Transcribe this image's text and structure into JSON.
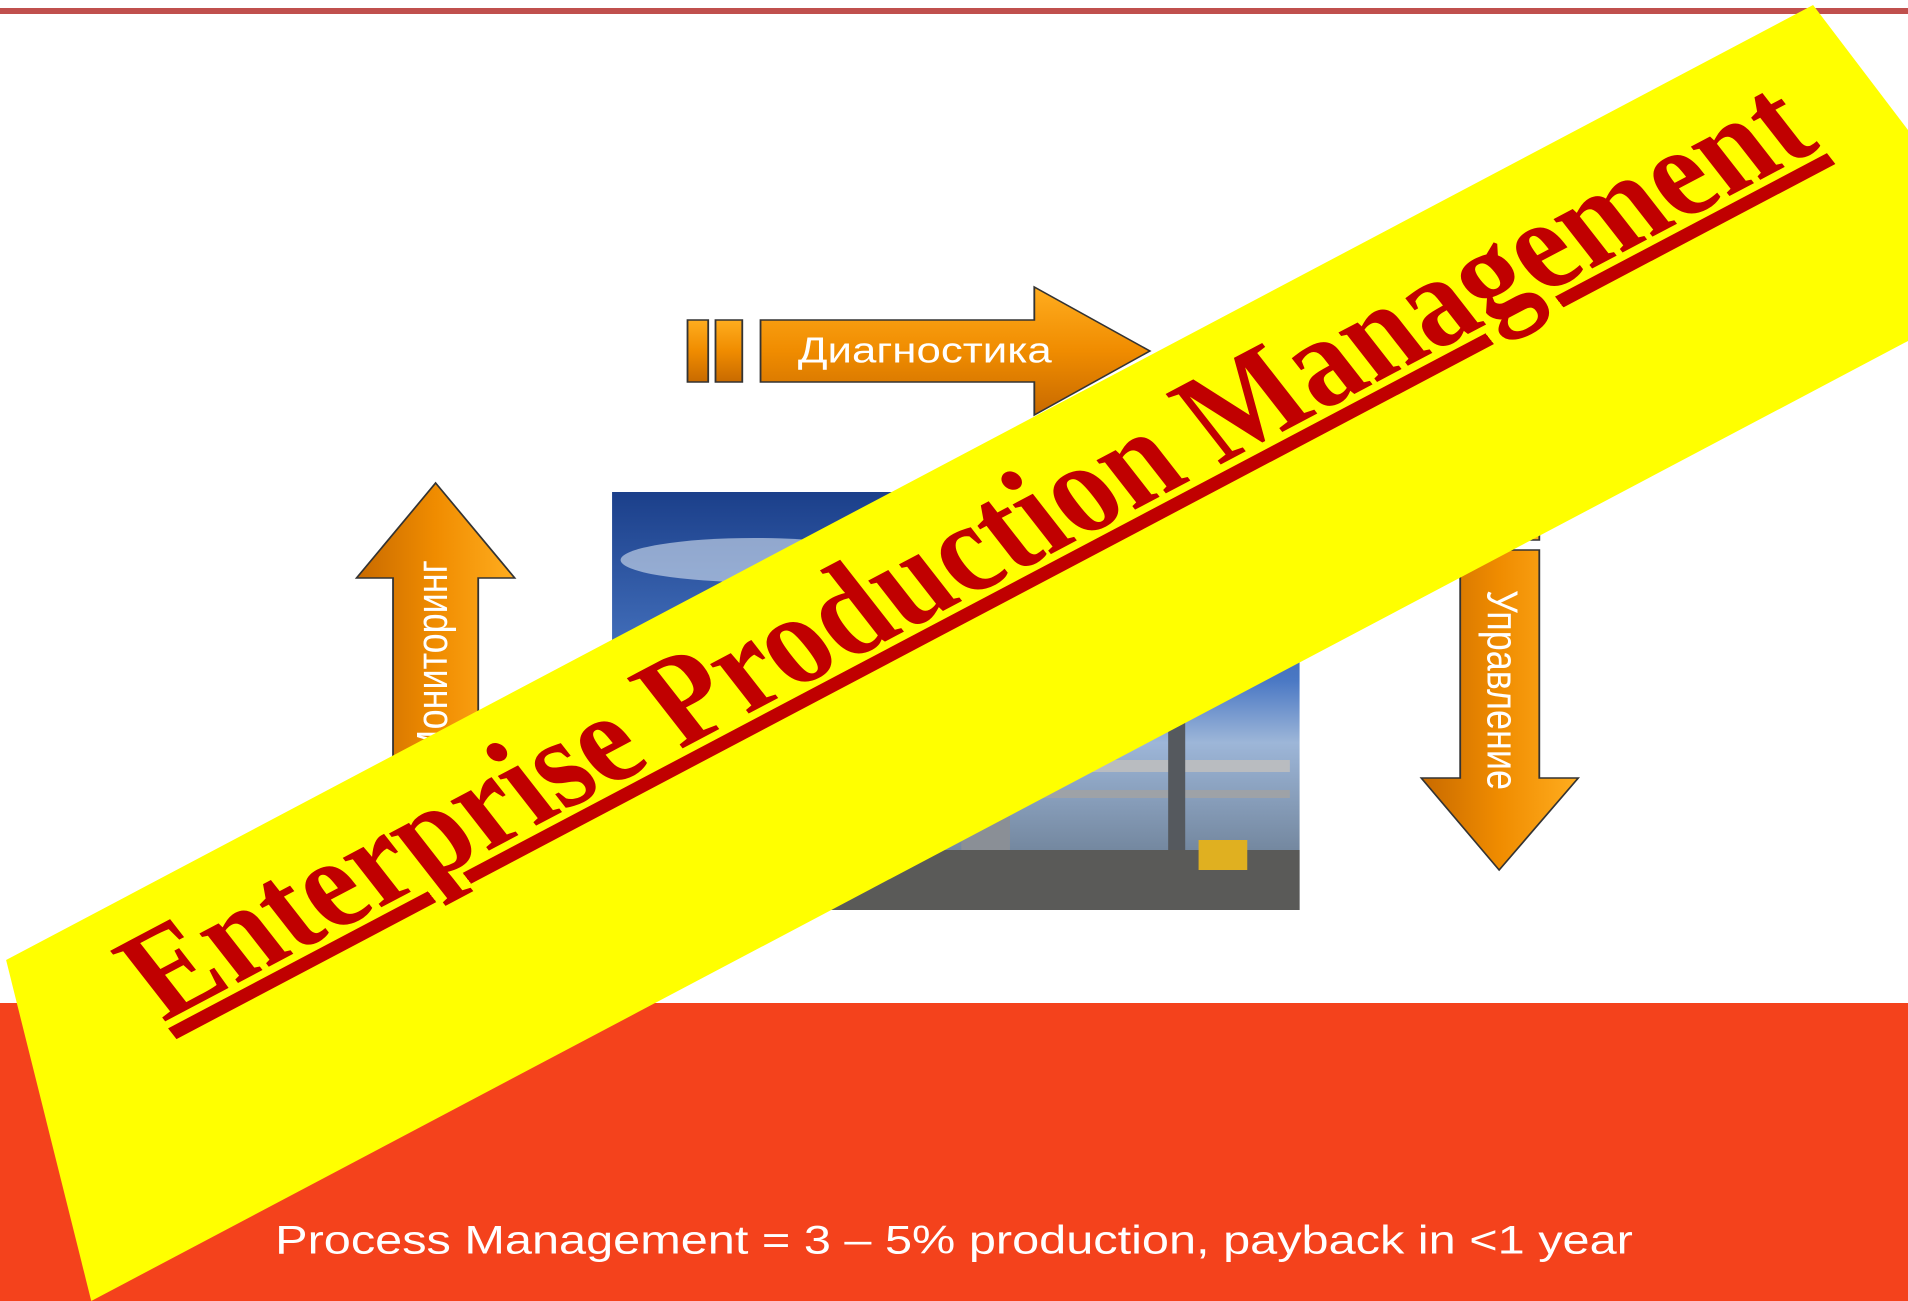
{
  "slide": {
    "steps": {
      "top": "Диагностика",
      "left": "Мониторинг",
      "right": "Управление"
    },
    "banner": "Enterprise Production Management",
    "footer": "Process Management = 3 – 5% production, payback in <1 year"
  }
}
